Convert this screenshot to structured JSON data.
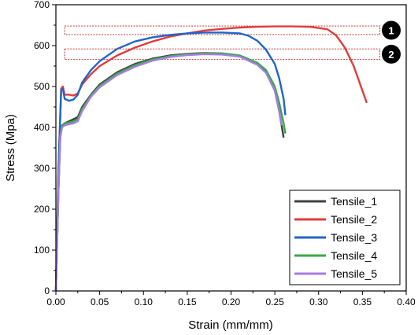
{
  "chart_data": {
    "type": "line",
    "xlabel": "Strain  (mm/mm)",
    "ylabel": "Stress (Mpa)",
    "xlim": [
      0.0,
      0.4
    ],
    "ylim": [
      0,
      700
    ],
    "xticks": [
      "0.00",
      "0.05",
      "0.10",
      "0.15",
      "0.20",
      "0.25",
      "0.30",
      "0.35",
      "0.40"
    ],
    "yticks": [
      "0",
      "100",
      "200",
      "300",
      "400",
      "500",
      "600",
      "700"
    ],
    "grid": false,
    "legend_position": "bottom-right",
    "series": [
      {
        "name": "Tensile_1",
        "color": "#404040",
        "x": [
          0,
          0.003,
          0.005,
          0.007,
          0.01,
          0.015,
          0.02,
          0.025,
          0.03,
          0.04,
          0.05,
          0.07,
          0.09,
          0.11,
          0.13,
          0.15,
          0.17,
          0.19,
          0.21,
          0.23,
          0.24,
          0.25,
          0.255,
          0.26
        ],
        "y": [
          0,
          250,
          380,
          405,
          410,
          415,
          420,
          425,
          450,
          480,
          505,
          535,
          555,
          568,
          576,
          580,
          582,
          581,
          575,
          555,
          535,
          490,
          440,
          375
        ]
      },
      {
        "name": "Tensile_2",
        "color": "#e03c3c",
        "x": [
          0,
          0.003,
          0.006,
          0.008,
          0.01,
          0.015,
          0.02,
          0.025,
          0.03,
          0.04,
          0.05,
          0.07,
          0.09,
          0.11,
          0.13,
          0.15,
          0.17,
          0.19,
          0.21,
          0.23,
          0.25,
          0.27,
          0.29,
          0.31,
          0.32,
          0.33,
          0.34,
          0.35,
          0.355
        ],
        "y": [
          0,
          300,
          495,
          500,
          480,
          480,
          478,
          483,
          505,
          530,
          550,
          576,
          595,
          610,
          622,
          630,
          637,
          641,
          644,
          646,
          647,
          647,
          646,
          640,
          625,
          595,
          550,
          490,
          460
        ]
      },
      {
        "name": "Tensile_3",
        "color": "#2065c8",
        "x": [
          0,
          0.003,
          0.006,
          0.008,
          0.01,
          0.015,
          0.02,
          0.025,
          0.03,
          0.04,
          0.05,
          0.07,
          0.09,
          0.11,
          0.13,
          0.15,
          0.17,
          0.19,
          0.21,
          0.22,
          0.23,
          0.24,
          0.25,
          0.255,
          0.26,
          0.262
        ],
        "y": [
          0,
          300,
          490,
          495,
          470,
          465,
          468,
          480,
          510,
          540,
          562,
          592,
          610,
          620,
          626,
          630,
          632,
          632,
          630,
          624,
          612,
          590,
          555,
          520,
          470,
          430
        ]
      },
      {
        "name": "Tensile_4",
        "color": "#3aa84a",
        "x": [
          0,
          0.003,
          0.005,
          0.007,
          0.01,
          0.015,
          0.02,
          0.025,
          0.03,
          0.04,
          0.05,
          0.07,
          0.09,
          0.11,
          0.13,
          0.15,
          0.17,
          0.19,
          0.21,
          0.23,
          0.24,
          0.25,
          0.255,
          0.26,
          0.262
        ],
        "y": [
          0,
          250,
          380,
          405,
          410,
          412,
          415,
          420,
          445,
          478,
          502,
          532,
          552,
          566,
          574,
          579,
          581,
          581,
          576,
          558,
          540,
          500,
          460,
          410,
          385
        ]
      },
      {
        "name": "Tensile_5",
        "color": "#a47ee0",
        "x": [
          0,
          0.003,
          0.005,
          0.007,
          0.01,
          0.015,
          0.02,
          0.025,
          0.03,
          0.04,
          0.05,
          0.07,
          0.09,
          0.11,
          0.13,
          0.15,
          0.17,
          0.19,
          0.21,
          0.23,
          0.24,
          0.25,
          0.255,
          0.258
        ],
        "y": [
          0,
          250,
          375,
          400,
          405,
          408,
          410,
          415,
          440,
          475,
          498,
          528,
          548,
          563,
          572,
          577,
          579,
          578,
          573,
          553,
          533,
          490,
          440,
          405
        ]
      }
    ],
    "bands": [
      {
        "label": "1",
        "x": [
          0.01,
          0.37
        ],
        "y": [
          627,
          648
        ]
      },
      {
        "label": "2",
        "x": [
          0.01,
          0.37
        ],
        "y": [
          566,
          592
        ]
      }
    ]
  }
}
